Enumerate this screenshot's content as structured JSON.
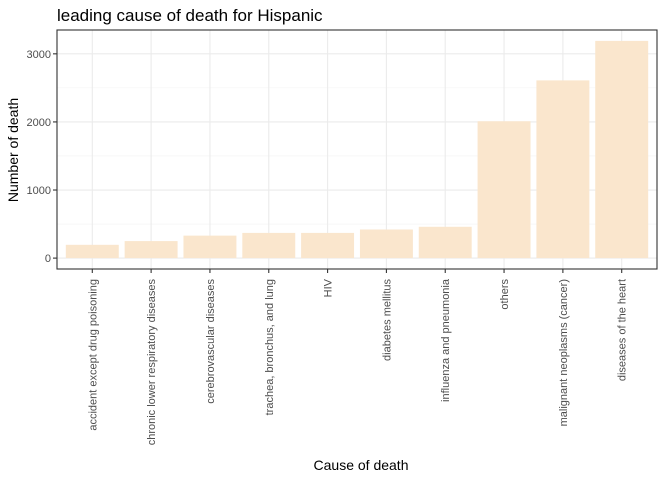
{
  "chart_data": {
    "type": "bar",
    "title": "leading cause of death for Hispanic",
    "xlabel": "Cause of death",
    "ylabel": "Number of death",
    "categories": [
      "accident except drug poisoning",
      "chronic lower respiratory diseases",
      "cerebrovascular diseases",
      "trachea, bronchus, and lung",
      "HIV",
      "diabetes mellitus",
      "influenza and pneumonia",
      "others",
      "malignant neoplasms (cancer)",
      "diseases of the heart"
    ],
    "values": [
      195,
      250,
      330,
      370,
      370,
      420,
      460,
      2010,
      2610,
      3190
    ],
    "yticks": [
      0,
      1000,
      2000,
      3000
    ],
    "ylim": [
      -160,
      3350
    ],
    "grid": true,
    "bar_color": "#fae6cd",
    "legend": "none"
  }
}
